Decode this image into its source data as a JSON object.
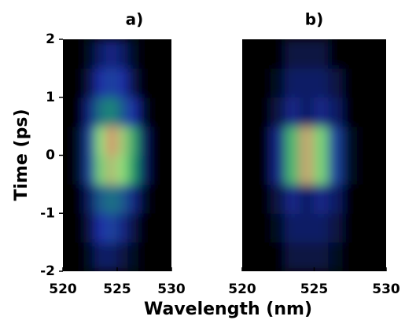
{
  "chart_data": [
    {
      "type": "heatmap",
      "title": "a)",
      "ylabel": "Time (ps)",
      "xlabel": "Wavelength (nm)",
      "xlim": [
        520,
        530
      ],
      "ylim": [
        -2,
        2
      ],
      "xticks": [
        520,
        525,
        530
      ],
      "yticks": [
        -2,
        -1,
        0,
        1,
        2
      ],
      "colormap": [
        "#000000",
        "#1c2fa8",
        "#1d9e6a",
        "#8fe07a",
        "#e8806a"
      ],
      "x": [
        520.5,
        521.5,
        522.5,
        523.5,
        524.5,
        525.5,
        526.5,
        527.5,
        528.5,
        529.5
      ],
      "y": [
        -1.75,
        -1.25,
        -0.75,
        -0.25,
        0.25,
        0.75,
        1.25,
        1.75
      ],
      "z": [
        [
          0,
          0,
          0.05,
          0.15,
          0.15,
          0.1,
          0.05,
          0,
          0,
          0
        ],
        [
          0,
          0,
          0.1,
          0.25,
          0.3,
          0.2,
          0.1,
          0,
          0,
          0
        ],
        [
          0,
          0,
          0.15,
          0.35,
          0.4,
          0.35,
          0.2,
          0.05,
          0,
          0
        ],
        [
          0,
          0.05,
          0.3,
          0.7,
          0.85,
          0.75,
          0.5,
          0.15,
          0,
          0
        ],
        [
          0,
          0.05,
          0.3,
          0.75,
          0.95,
          0.8,
          0.55,
          0.15,
          0,
          0
        ],
        [
          0,
          0,
          0.2,
          0.4,
          0.45,
          0.35,
          0.25,
          0.05,
          0,
          0
        ],
        [
          0,
          0,
          0.1,
          0.25,
          0.3,
          0.25,
          0.1,
          0,
          0,
          0
        ],
        [
          0,
          0,
          0.05,
          0.15,
          0.2,
          0.15,
          0.05,
          0,
          0,
          0
        ]
      ]
    },
    {
      "type": "heatmap",
      "title": "b)",
      "xlim": [
        520,
        530
      ],
      "ylim": [
        -2,
        2
      ],
      "xticks": [
        520,
        525,
        530
      ],
      "colormap": [
        "#000000",
        "#1c2fa8",
        "#1d9e6a",
        "#8fe07a",
        "#e8806a"
      ],
      "x": [
        520.5,
        521.5,
        522.5,
        523.5,
        524.5,
        525.5,
        526.5,
        527.5,
        528.5,
        529.5
      ],
      "y": [
        -1.75,
        -1.25,
        -0.75,
        -0.25,
        0.25,
        0.75,
        1.25,
        1.75
      ],
      "z": [
        [
          0,
          0,
          0,
          0.1,
          0.1,
          0.1,
          0.05,
          0,
          0,
          0
        ],
        [
          0,
          0,
          0.05,
          0.15,
          0.15,
          0.15,
          0.1,
          0,
          0,
          0
        ],
        [
          0,
          0,
          0.1,
          0.2,
          0.15,
          0.2,
          0.15,
          0,
          0,
          0
        ],
        [
          0,
          0,
          0.2,
          0.6,
          0.9,
          0.7,
          0.3,
          0.05,
          0,
          0
        ],
        [
          0,
          0,
          0.2,
          0.6,
          0.9,
          0.7,
          0.3,
          0.05,
          0,
          0
        ],
        [
          0,
          0,
          0.1,
          0.2,
          0.15,
          0.2,
          0.15,
          0,
          0,
          0
        ],
        [
          0,
          0,
          0.05,
          0.15,
          0.15,
          0.15,
          0.1,
          0,
          0,
          0
        ],
        [
          0,
          0,
          0,
          0.1,
          0.1,
          0.1,
          0,
          0,
          0,
          0
        ]
      ]
    }
  ]
}
